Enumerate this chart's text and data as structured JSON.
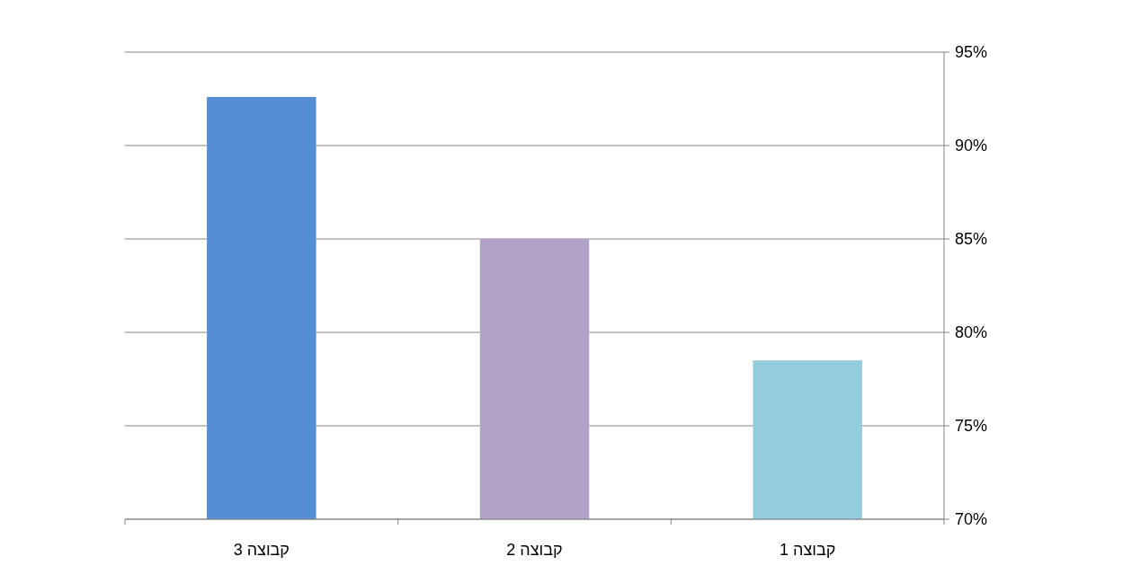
{
  "chart_data": {
    "type": "bar",
    "categories": [
      "קבוצה 3",
      "קבוצה 2",
      "קבוצה 1"
    ],
    "values": [
      92.6,
      85,
      78.5
    ],
    "colors": [
      "#558ed5",
      "#b3a2c7",
      "#93cddd"
    ],
    "ylim": [
      70,
      95
    ],
    "yticks": [
      {
        "value": 70,
        "label": "70%"
      },
      {
        "value": 75,
        "label": "75%"
      },
      {
        "value": 80,
        "label": "80%"
      },
      {
        "value": 85,
        "label": "85%"
      },
      {
        "value": 90,
        "label": "90%"
      },
      {
        "value": 95,
        "label": "95%"
      }
    ],
    "grid": "y"
  }
}
